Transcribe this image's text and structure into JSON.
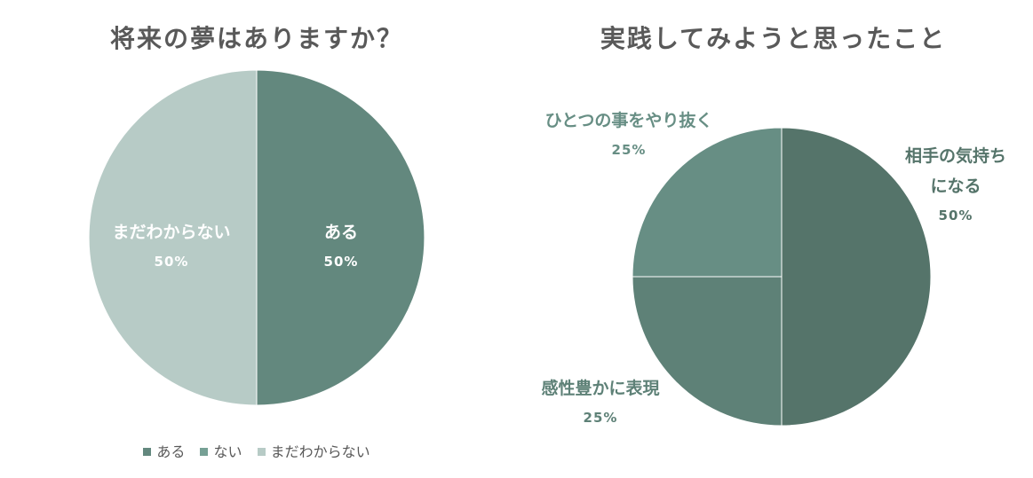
{
  "chart_data": [
    {
      "type": "pie",
      "title": "将来の夢はありますか？",
      "slices": [
        {
          "label": "ある",
          "value": 50,
          "pct_label": "50%",
          "color": "#63887e"
        },
        {
          "label": "ない",
          "value": 0,
          "pct_label": "",
          "color": "#76a095"
        },
        {
          "label": "まだわからない",
          "value": 50,
          "pct_label": "50%",
          "color": "#b7cbc6"
        }
      ],
      "legend": {
        "position": "bottom",
        "entries": [
          "ある",
          "ない",
          "まだわからない"
        ]
      }
    },
    {
      "type": "pie",
      "title": "実践してみようと思ったこと",
      "slices": [
        {
          "label": "相手の気持ちになる",
          "label_lines": [
            "相手の気持ち",
            "になる"
          ],
          "value": 50,
          "pct_label": "50%",
          "color": "#55746a"
        },
        {
          "label": "感性豊かに表現",
          "label_lines": [
            "感性豊かに表現"
          ],
          "value": 25,
          "pct_label": "25%",
          "color": "#5e8177"
        },
        {
          "label": "ひとつの事をやり抜く",
          "label_lines": [
            "ひとつの事をやり抜く"
          ],
          "value": 25,
          "pct_label": "25%",
          "color": "#678e84"
        }
      ]
    }
  ]
}
